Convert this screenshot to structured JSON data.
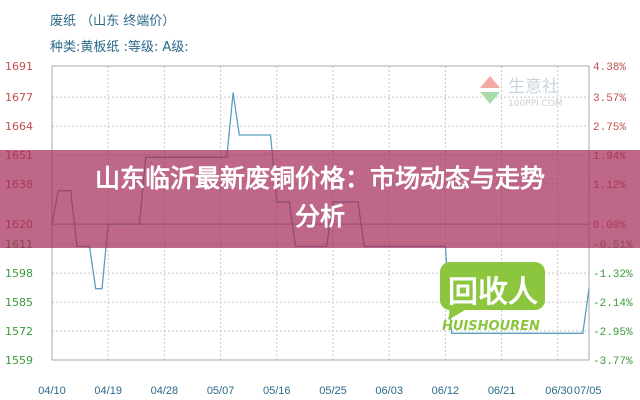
{
  "header": {
    "title": "废纸 （山东 终端价）",
    "subtitle": "种类:黄板纸 :等级: A级:"
  },
  "banner": {
    "line1": "山东临沂最新废铜价格：市场动态与走势",
    "line2": "分析"
  },
  "watermark": {
    "name": "生意社",
    "site": "100PPI.COM"
  },
  "logo": {
    "text": "回收人",
    "sub": "HUISHOUREN",
    "color": "#8cc63f"
  },
  "chart_data": {
    "type": "line",
    "title": "",
    "xlabel": "",
    "ylabel": "",
    "x_ticks": [
      "04/10",
      "04/19",
      "04/28",
      "05/07",
      "05/16",
      "05/25",
      "06/03",
      "06/12",
      "06/21",
      "06/30",
      "07/05"
    ],
    "y_ticks_left": [
      1691,
      1677,
      1664,
      1651,
      1638,
      1620,
      1611,
      1598,
      1585,
      1572,
      1559
    ],
    "y_ticks_right": [
      "4.38%",
      "3.57%",
      "2.75%",
      "1.94%",
      "1.12%",
      "0.00%",
      "-0.51%",
      "-1.32%",
      "-2.14%",
      "-2.95%",
      "-3.77%"
    ],
    "ylim": [
      1559,
      1691
    ],
    "baseline": 1620,
    "grid": true,
    "colors": {
      "line": "#5b9ec0",
      "up_tick": "#c0504d",
      "down_tick": "#3a9a3a",
      "grid": "#c8c8c8"
    },
    "series": [
      {
        "x": [
          "04/10",
          "04/11",
          "04/13",
          "04/14",
          "04/16",
          "04/17",
          "04/18",
          "04/19",
          "04/24",
          "04/25",
          "05/08",
          "05/09",
          "05/10",
          "05/15",
          "05/16",
          "05/18",
          "05/19",
          "05/24",
          "05/25",
          "05/29",
          "05/30",
          "06/12",
          "06/13",
          "07/04",
          "07/05"
        ],
        "y": [
          1620,
          1635,
          1635,
          1610,
          1610,
          1591,
          1591,
          1620,
          1620,
          1650,
          1650,
          1679,
          1660,
          1660,
          1630,
          1630,
          1610,
          1610,
          1630,
          1630,
          1610,
          1610,
          1571,
          1571,
          1591
        ]
      }
    ]
  }
}
